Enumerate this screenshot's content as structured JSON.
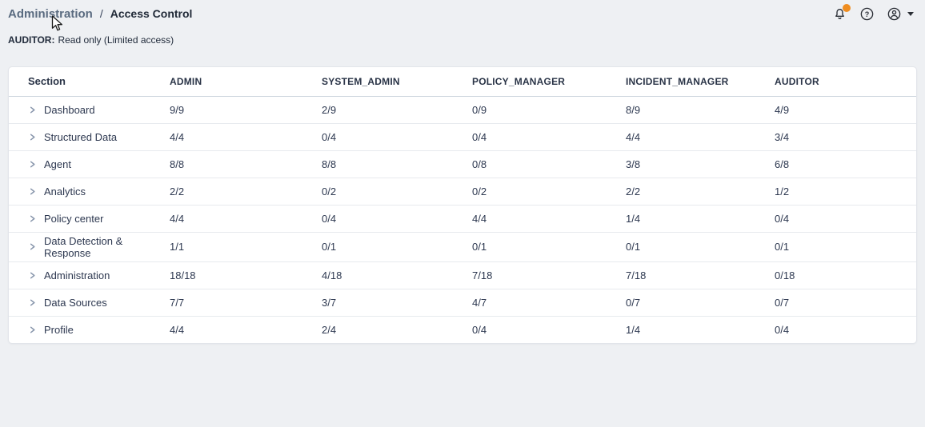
{
  "colors": {
    "background": "#eef0f3",
    "card": "#ffffff",
    "text": "#2d3850",
    "breadcrumb_link": "#5a6b80",
    "notification_badge": "#ef8d20"
  },
  "breadcrumb": {
    "parent": "Administration",
    "separator": "/",
    "current": "Access Control"
  },
  "subtitle": {
    "label": "AUDITOR:",
    "text": "Read only (Limited access)"
  },
  "icons": {
    "help_glyph": "?",
    "names": [
      "bell-icon",
      "help-icon",
      "account-icon",
      "caret-down-icon",
      "chevron-right-icon"
    ]
  },
  "table": {
    "columns": [
      "Section",
      "ADMIN",
      "SYSTEM_ADMIN",
      "POLICY_MANAGER",
      "INCIDENT_MANAGER",
      "AUDITOR"
    ],
    "rows": [
      {
        "section": "Dashboard",
        "values": [
          "9/9",
          "2/9",
          "0/9",
          "8/9",
          "4/9"
        ]
      },
      {
        "section": "Structured Data",
        "values": [
          "4/4",
          "0/4",
          "0/4",
          "4/4",
          "3/4"
        ]
      },
      {
        "section": "Agent",
        "values": [
          "8/8",
          "8/8",
          "0/8",
          "3/8",
          "6/8"
        ]
      },
      {
        "section": "Analytics",
        "values": [
          "2/2",
          "0/2",
          "0/2",
          "2/2",
          "1/2"
        ]
      },
      {
        "section": "Policy center",
        "values": [
          "4/4",
          "0/4",
          "4/4",
          "1/4",
          "0/4"
        ]
      },
      {
        "section": "Data Detection & Response",
        "values": [
          "1/1",
          "0/1",
          "0/1",
          "0/1",
          "0/1"
        ]
      },
      {
        "section": "Administration",
        "values": [
          "18/18",
          "4/18",
          "7/18",
          "7/18",
          "0/18"
        ]
      },
      {
        "section": "Data Sources",
        "values": [
          "7/7",
          "3/7",
          "4/7",
          "0/7",
          "0/7"
        ]
      },
      {
        "section": "Profile",
        "values": [
          "4/4",
          "2/4",
          "0/4",
          "1/4",
          "0/4"
        ]
      }
    ]
  }
}
